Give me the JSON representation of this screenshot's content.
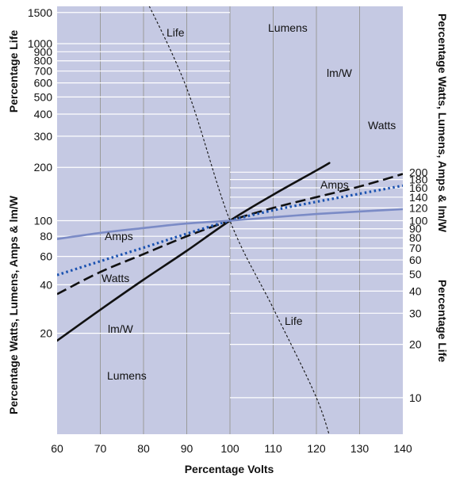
{
  "chart_data": {
    "type": "line",
    "xlabel": "Percentage Volts",
    "xlim": [
      60,
      140
    ],
    "x_ticks": [
      "60",
      "70",
      "80",
      "90",
      "100",
      "110",
      "120",
      "130",
      "140"
    ],
    "left_scales": {
      "top_label": "Percentage Life",
      "top_ticks": [
        "1500",
        "1000",
        "900",
        "800",
        "700",
        "600",
        "500",
        "400",
        "300",
        "200"
      ],
      "bottom_label": "Percentage Watts, Lumens, Amps & lm/W",
      "bottom_ticks": [
        "100",
        "80",
        "60",
        "40",
        "20"
      ]
    },
    "right_scales": {
      "top_label": "Percentage Watts, Lumens, Amps & lm/W",
      "top_ticks": [
        "200",
        "180",
        "160",
        "140",
        "120",
        "100"
      ],
      "bottom_label": "Percentage Life",
      "bottom_ticks": [
        "90",
        "80",
        "70",
        "60",
        "50",
        "40",
        "30",
        "20",
        "10"
      ]
    },
    "background_color": "#c5c9e3",
    "grid": true,
    "series": [
      {
        "name": "Lumens",
        "label_top": "Lumens",
        "label_bottom": "Lumens",
        "color": "#111111",
        "style": "solid",
        "x": [
          60,
          70,
          80,
          90,
          100,
          110,
          120,
          123
        ],
        "y": [
          18,
          28,
          43,
          65,
          100,
          145,
          205,
          228
        ]
      },
      {
        "name": "lm/W",
        "label_top": "lm/W",
        "label_bottom": "lm/W",
        "color": "#111111",
        "style": "dashed",
        "x": [
          60,
          70,
          80,
          90,
          100,
          110,
          120,
          130,
          140
        ],
        "y": [
          35,
          48,
          62,
          80,
          100,
          120,
          140,
          163,
          195
        ]
      },
      {
        "name": "Watts",
        "label_top": "Watts",
        "label_bottom": "Watts",
        "color": "#1a52b0",
        "style": "dotted",
        "x": [
          60,
          70,
          80,
          90,
          100,
          110,
          120,
          130,
          140
        ],
        "y": [
          46,
          56,
          68,
          83,
          100,
          116,
          131,
          147,
          165
        ]
      },
      {
        "name": "Amps",
        "label_top": "Amps",
        "label_bottom": "Amps",
        "color": "#7b8bc6",
        "style": "solid",
        "x": [
          60,
          70,
          80,
          90,
          100,
          110,
          120,
          130,
          140
        ],
        "y": [
          77,
          84,
          90,
          96,
          100,
          105,
          110,
          114,
          118
        ]
      },
      {
        "name": "Life",
        "label_top": "Life",
        "label_bottom": "Life",
        "color": "#111111",
        "style": "fine-dashed",
        "x": [
          80,
          90,
          100,
          110,
          120,
          124
        ],
        "y": [
          1900,
          560,
          100,
          32,
          10,
          5
        ]
      }
    ]
  }
}
